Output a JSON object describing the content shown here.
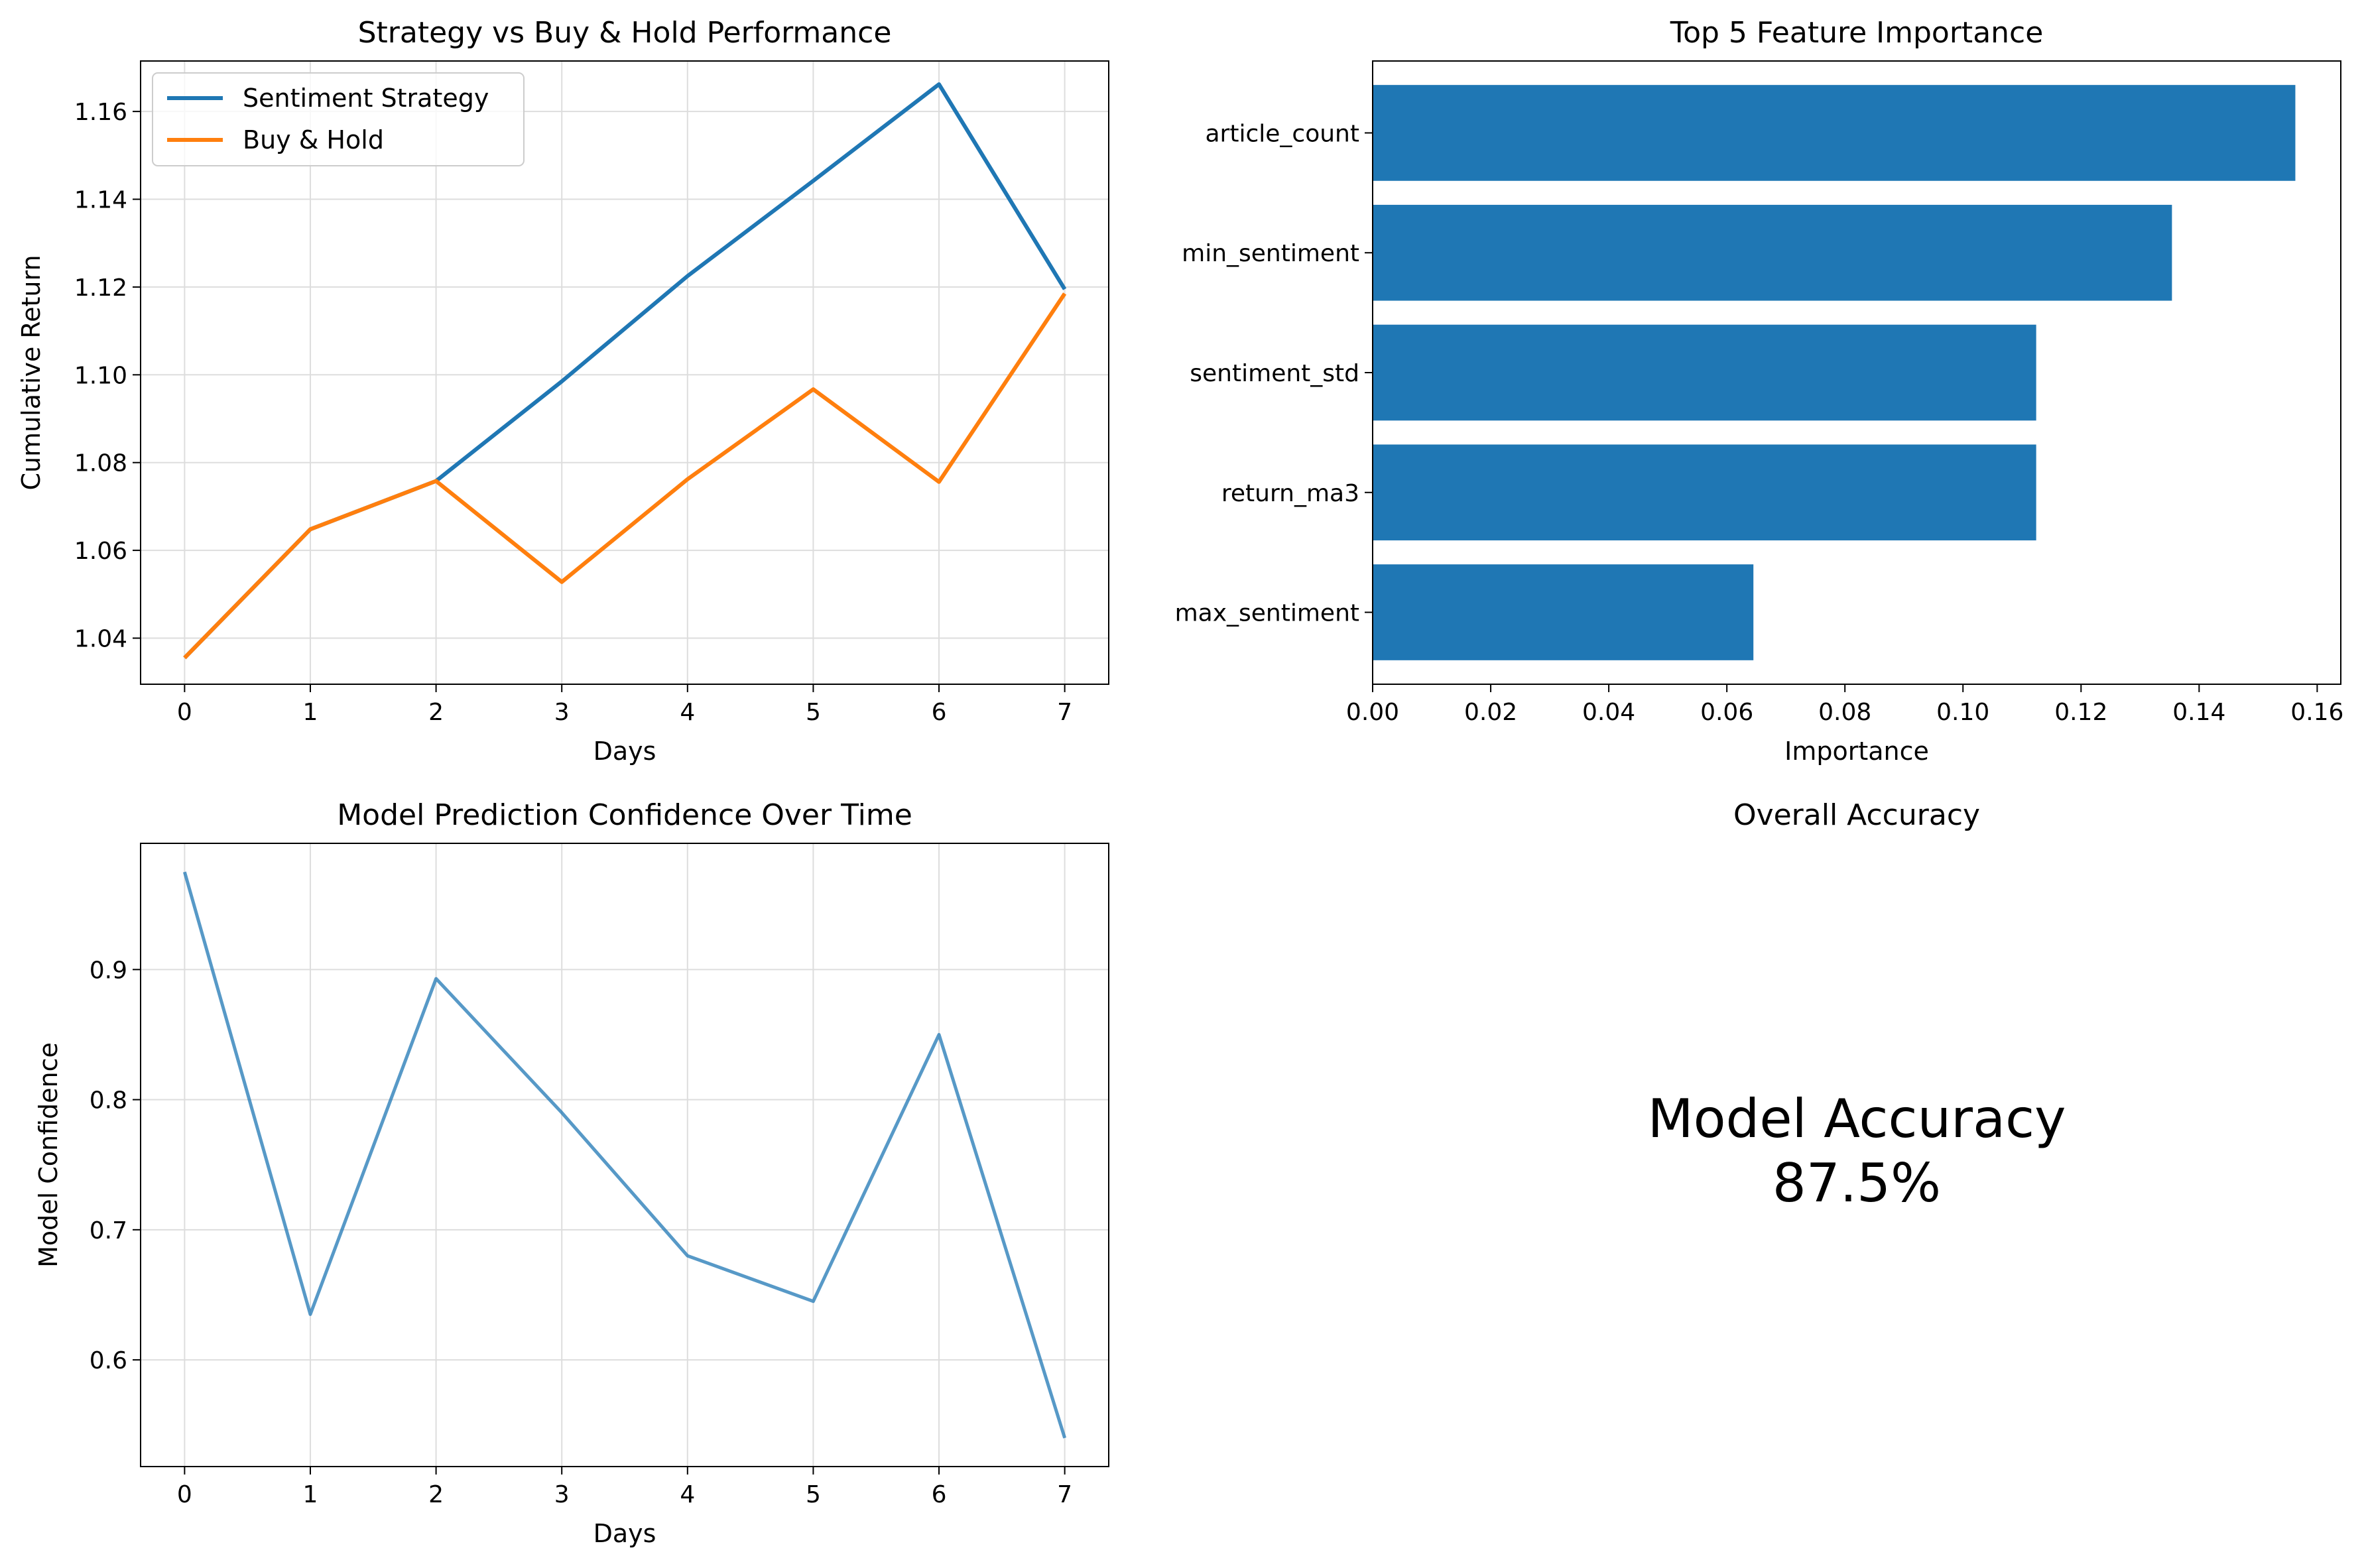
{
  "colors": {
    "blue": "#1f77b4",
    "orange": "#ff7f0e",
    "grid": "#dddddd"
  },
  "chart_data": [
    {
      "type": "line",
      "title": "Strategy vs Buy & Hold Performance",
      "xlabel": "Days",
      "ylabel": "Cumulative Return",
      "x": [
        0,
        1,
        2,
        3,
        4,
        5,
        6,
        7
      ],
      "xlim": [
        -0.35,
        7.35
      ],
      "ylim": [
        1.0295,
        1.1715
      ],
      "xticks": [
        "0",
        "1",
        "2",
        "3",
        "4",
        "5",
        "6",
        "7"
      ],
      "yticks": [
        "1.04",
        "1.06",
        "1.08",
        "1.10",
        "1.12",
        "1.14",
        "1.16"
      ],
      "grid": true,
      "legend": "top-left",
      "series": [
        {
          "name": "Sentiment Strategy",
          "values": [
            1.0355,
            1.0648,
            1.0758,
            1.0985,
            1.1225,
            1.1442,
            1.1662,
            1.1195
          ]
        },
        {
          "name": "Buy & Hold",
          "values": [
            1.0355,
            1.0648,
            1.0758,
            1.0528,
            1.0762,
            1.0967,
            1.0756,
            1.1185
          ]
        }
      ]
    },
    {
      "type": "bar",
      "orientation": "horizontal",
      "title": "Top 5 Feature Importance",
      "xlabel": "Importance",
      "ylabel": "",
      "categories": [
        "article_count",
        "min_sentiment",
        "sentiment_std",
        "return_ma3",
        "max_sentiment"
      ],
      "values": [
        0.1563,
        0.1354,
        0.1124,
        0.1124,
        0.0645
      ],
      "xlim": [
        0,
        0.164
      ],
      "xticks": [
        "0.00",
        "0.02",
        "0.04",
        "0.06",
        "0.08",
        "0.10",
        "0.12",
        "0.14",
        "0.16"
      ],
      "grid": false
    },
    {
      "type": "line",
      "title": "Model Prediction Confidence Over Time",
      "xlabel": "Days",
      "ylabel": "Model Confidence",
      "x": [
        0,
        1,
        2,
        3,
        4,
        5,
        6,
        7
      ],
      "xlim": [
        -0.35,
        7.35
      ],
      "ylim": [
        0.518,
        0.997
      ],
      "xticks": [
        "0",
        "1",
        "2",
        "3",
        "4",
        "5",
        "6",
        "7"
      ],
      "yticks": [
        "0.6",
        "0.7",
        "0.8",
        "0.9"
      ],
      "grid": true,
      "series": [
        {
          "values": [
            0.975,
            0.635,
            0.893,
            0.79,
            0.68,
            0.645,
            0.85,
            0.54
          ]
        }
      ]
    },
    {
      "type": "table",
      "title": "Overall Accuracy",
      "label": "Model Accuracy",
      "value": "87.5%"
    }
  ]
}
